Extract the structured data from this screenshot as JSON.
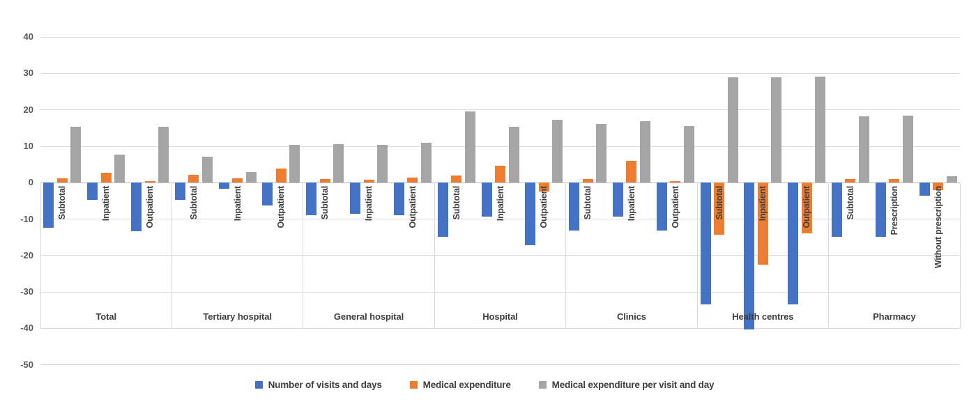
{
  "chart_data": {
    "type": "bar",
    "title": "",
    "grid": true,
    "legend_position": "bottom",
    "ylim": [
      -50,
      40
    ],
    "yticks": [
      40,
      30,
      20,
      10,
      0,
      -10,
      -20,
      -30,
      -40,
      -50
    ],
    "series": [
      {
        "name": "Number of visits and days",
        "color": "#4472C4"
      },
      {
        "name": "Medical expenditure",
        "color": "#ED7D31"
      },
      {
        "name": "Medical expenditure per visit and day",
        "color": "#A5A5A5"
      }
    ],
    "groups": [
      {
        "label": "Total",
        "items": [
          {
            "label": "Subtotal",
            "values": [
              -12.3,
              1.2,
              15.3
            ]
          },
          {
            "label": "Inpatient",
            "values": [
              -4.7,
              2.8,
              7.8
            ]
          },
          {
            "label": "Outpatient",
            "values": [
              -13.3,
              0.4,
              15.3
            ]
          }
        ]
      },
      {
        "label": "Tertiary hospital",
        "items": [
          {
            "label": "Subtotal",
            "values": [
              -4.8,
              2.2,
              7.2
            ]
          },
          {
            "label": "Inpatient",
            "values": [
              -1.6,
              1.3,
              2.9
            ]
          },
          {
            "label": "Outpatient",
            "values": [
              -6.2,
              3.8,
              10.4
            ]
          }
        ]
      },
      {
        "label": "General hospital",
        "items": [
          {
            "label": "Subtotal",
            "values": [
              -9.0,
              1.0,
              10.5
            ]
          },
          {
            "label": "Inpatient",
            "values": [
              -8.6,
              0.8,
              10.3
            ]
          },
          {
            "label": "Outpatient",
            "values": [
              -9.0,
              1.4,
              11.0
            ]
          }
        ]
      },
      {
        "label": "Hospital",
        "items": [
          {
            "label": "Subtotal",
            "values": [
              -14.8,
              2.0,
              19.6
            ]
          },
          {
            "label": "Inpatient",
            "values": [
              -9.3,
              4.6,
              15.3
            ]
          },
          {
            "label": "Outpatient",
            "values": [
              -17.1,
              -2.5,
              17.2
            ]
          }
        ]
      },
      {
        "label": "Clinics",
        "items": [
          {
            "label": "Subtotal",
            "values": [
              -13.1,
              1.0,
              16.1
            ]
          },
          {
            "label": "Inpatient",
            "values": [
              -9.4,
              6.0,
              16.8
            ]
          },
          {
            "label": "Outpatient",
            "values": [
              -13.1,
              0.4,
              15.5
            ]
          }
        ]
      },
      {
        "label": "Health centres",
        "items": [
          {
            "label": "Subtotal",
            "values": [
              -33.4,
              -14.2,
              29.0
            ]
          },
          {
            "label": "Inpatient",
            "values": [
              -40.3,
              -22.5,
              29.0
            ]
          },
          {
            "label": "Outpatient",
            "values": [
              -33.4,
              -14.0,
              29.2
            ]
          }
        ]
      },
      {
        "label": "Pharmacy",
        "items": [
          {
            "label": "Subtotal",
            "values": [
              -14.8,
              1.0,
              18.3
            ]
          },
          {
            "label": "Prescription",
            "values": [
              -14.9,
              1.0,
              18.4
            ]
          },
          {
            "label": "Without prescription",
            "values": [
              -3.6,
              -2.1,
              1.7
            ]
          }
        ]
      }
    ]
  }
}
